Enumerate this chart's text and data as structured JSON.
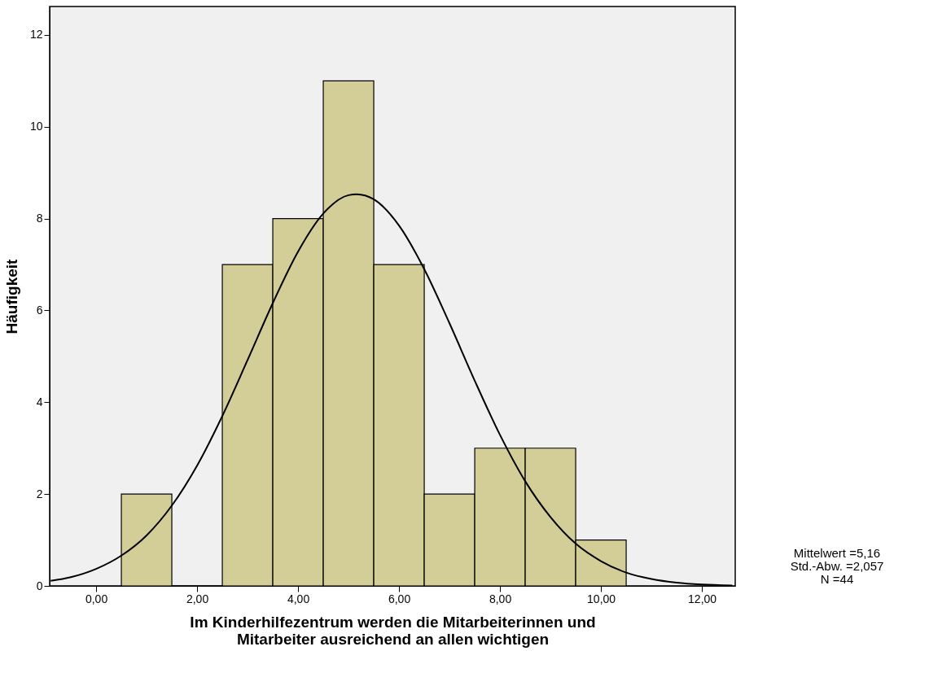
{
  "chart_data": {
    "type": "histogram",
    "xlabel": "Im Kinderhilfezentrum werden die Mitarbeiterinnen und\nMitarbeiter ausreichend an allen wichtigen",
    "ylabel": "Häufigkeit",
    "annotations": [
      "Mittelwert =5,16",
      "Std.-Abw. =2,057",
      "N =44"
    ],
    "xlim": [
      -0.92,
      12.66
    ],
    "ylim": [
      0,
      12.62
    ],
    "xticks": [
      {
        "value": 0,
        "label": "0,00"
      },
      {
        "value": 2,
        "label": "2,00"
      },
      {
        "value": 4,
        "label": "4,00"
      },
      {
        "value": 6,
        "label": "6,00"
      },
      {
        "value": 8,
        "label": "8,00"
      },
      {
        "value": 10,
        "label": "10,00"
      },
      {
        "value": 12,
        "label": "12,00"
      }
    ],
    "yticks": [
      0,
      2,
      4,
      6,
      8,
      10,
      12
    ],
    "series": [
      {
        "color": "#d3ce97",
        "bins": [
          0.5,
          1.5,
          2.5,
          3.5,
          4.5,
          5.5,
          6.5,
          7.5,
          8.5,
          9.5,
          10.5
        ],
        "values": [
          2,
          0,
          7,
          8,
          11,
          7,
          2,
          3,
          3,
          1
        ]
      },
      {
        "type": "line",
        "color": "#000000",
        "x": [
          -0.9,
          -0.5,
          0,
          0.5,
          1,
          1.5,
          2,
          2.5,
          3,
          3.5,
          4,
          4.5,
          5,
          5.16,
          5.5,
          6,
          6.5,
          7,
          7.5,
          8,
          8.5,
          9,
          9.5,
          10,
          10.5,
          11,
          11.5,
          12,
          12.6
        ],
        "values": [
          0.11,
          0.19,
          0.37,
          0.66,
          1.1,
          1.75,
          2.62,
          3.7,
          4.92,
          6.16,
          7.28,
          8.11,
          8.51,
          8.53,
          8.42,
          7.85,
          6.9,
          5.72,
          4.47,
          3.29,
          2.28,
          1.5,
          0.92,
          0.54,
          0.29,
          0.15,
          0.07,
          0.03,
          0.01
        ]
      }
    ]
  }
}
